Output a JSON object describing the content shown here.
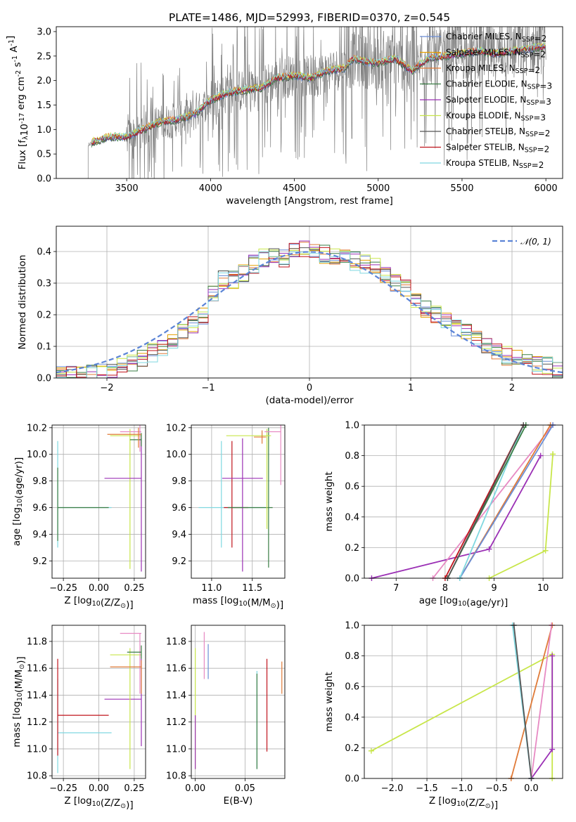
{
  "figure": {
    "title": "PLATE=1486, MJD=52993, FIBERID=0370, z=0.545"
  },
  "chart_data": [
    {
      "id": "spectrum",
      "type": "line",
      "xlabel": "wavelength [Angstrom, rest frame]",
      "ylabel": "Flux [f$_λ$10$^{-17}$ erg cm$^{-2}$ s$^{-1}$ A$^{-1}$]",
      "xlim": [
        3080,
        6100
      ],
      "ylim": [
        0,
        3.1
      ],
      "xticks": [
        3500,
        4000,
        4500,
        5000,
        5500,
        6000
      ],
      "yticks": [
        0.0,
        0.5,
        1.0,
        1.5,
        2.0,
        2.5,
        3.0
      ],
      "grid": false,
      "legend_position": "top-right",
      "legend": [
        {
          "label": "Chabrier MILES, N$_{SSP}$=2",
          "color": "#6b8ed6"
        },
        {
          "label": "Salpeter MILES, N$_{SSP}$=2",
          "color": "#e4a000"
        },
        {
          "label": "Kroupa MILES, N$_{SSP}$=2",
          "color": "#e07b39"
        },
        {
          "label": "Chabrier ELODIE, N$_{SSP}$=3",
          "color": "#3a7d44"
        },
        {
          "label": "Salpeter ELODIE, N$_{SSP}$=3",
          "color": "#9b30b5"
        },
        {
          "label": "Kroupa ELODIE, N$_{SSP}$=3",
          "color": "#c8e64a"
        },
        {
          "label": "Chabrier STELIB, N$_{SSP}$=2",
          "color": "#555555"
        },
        {
          "label": "Salpeter STELIB, N$_{SSP}$=2",
          "color": "#c0141c"
        },
        {
          "label": "Kroupa STELIB, N$_{SSP}$=2",
          "color": "#7fd8e0"
        }
      ],
      "data_color": "#808080",
      "data_envelope": {
        "x": [
          3270,
          3300,
          3400,
          3500,
          3600,
          3700,
          3800,
          3900,
          4000,
          4100,
          4200,
          4300,
          4400,
          4500,
          4600,
          4700,
          4800,
          4850,
          4900,
          5000,
          5100,
          5200,
          5300,
          5400,
          5500,
          5600,
          5700,
          5800,
          5900,
          6000
        ],
        "y": [
          0.65,
          0.75,
          0.85,
          0.85,
          1.0,
          1.15,
          1.2,
          1.3,
          1.6,
          1.75,
          1.8,
          1.85,
          2.05,
          2.1,
          2.05,
          2.2,
          2.25,
          2.45,
          2.4,
          2.35,
          2.45,
          2.2,
          2.45,
          2.5,
          2.55,
          2.6,
          2.55,
          2.6,
          2.65,
          2.7
        ]
      }
    },
    {
      "id": "residuals",
      "type": "step",
      "xlabel": "(data-model)/error",
      "ylabel": "Normed distribution",
      "xlim": [
        -2.5,
        2.5
      ],
      "ylim": [
        0,
        0.48
      ],
      "xticks": [
        -2,
        -1,
        0,
        1,
        2
      ],
      "yticks": [
        0.0,
        0.1,
        0.2,
        0.3,
        0.4
      ],
      "grid": true,
      "legend_position": "top-right",
      "legend": [
        {
          "label": "𝒩(0, 1)",
          "color": "#5b84d6",
          "style": "dashed"
        }
      ],
      "bin_edges_start": -2.5,
      "bin_width": 0.1,
      "envelope": [
        0.01,
        0.01,
        0.015,
        0.02,
        0.02,
        0.03,
        0.04,
        0.05,
        0.06,
        0.08,
        0.1,
        0.12,
        0.14,
        0.17,
        0.2,
        0.27,
        0.31,
        0.31,
        0.33,
        0.36,
        0.38,
        0.39,
        0.38,
        0.4,
        0.41,
        0.4,
        0.39,
        0.38,
        0.38,
        0.37,
        0.36,
        0.35,
        0.33,
        0.3,
        0.28,
        0.25,
        0.22,
        0.2,
        0.18,
        0.16,
        0.14,
        0.12,
        0.1,
        0.08,
        0.07,
        0.06,
        0.05,
        0.04,
        0.04,
        0.03
      ]
    },
    {
      "id": "age_vs_Z",
      "type": "errorbar",
      "xlabel": "Z [log$_{10}$(Z/Z$_⊙$)]",
      "ylabel": "age  [log$_{10}$(age/yr)]",
      "xlim": [
        -0.33,
        0.33
      ],
      "ylim": [
        9.07,
        10.22
      ],
      "xticks": [
        -0.25,
        0.0,
        0.25
      ],
      "yticks": [
        9.2,
        9.4,
        9.6,
        9.8,
        10.0,
        10.2
      ],
      "grid": true,
      "points": [
        {
          "x": -0.29,
          "y": 9.6,
          "xerr": [
            0.0,
            0.38
          ],
          "yerr": [
            0.3,
            0.5
          ],
          "color": "#7fd8e0"
        },
        {
          "x": -0.29,
          "y": 9.6,
          "xerr": [
            0.0,
            0.36
          ],
          "yerr": [
            0.25,
            0.3
          ],
          "color": "#3a7d44"
        },
        {
          "x": 0.22,
          "y": 10.14,
          "xerr": [
            0.14,
            0.08
          ],
          "yerr": [
            1.0,
            0.05
          ],
          "color": "#c8e64a"
        },
        {
          "x": 0.3,
          "y": 9.82,
          "xerr": [
            0.26,
            0.0
          ],
          "yerr": [
            0.7,
            0.3
          ],
          "color": "#9b30b5"
        },
        {
          "x": 0.29,
          "y": 10.17,
          "xerr": [
            0.14,
            0.01
          ],
          "yerr": [
            0.15,
            0.05
          ],
          "color": "#e78ac3"
        },
        {
          "x": 0.3,
          "y": 10.11,
          "xerr": [
            0.08,
            0.0
          ],
          "yerr": [
            0.05,
            0.05
          ],
          "color": "#3a7d44"
        },
        {
          "x": 0.28,
          "y": 10.15,
          "xerr": [
            0.22,
            0.02
          ],
          "yerr": [
            0.1,
            0.05
          ],
          "color": "#e07b39"
        }
      ]
    },
    {
      "id": "age_vs_mass",
      "type": "errorbar",
      "xlabel": "mass [log$_{10}$(M/M$_⊙$)]",
      "ylabel": "",
      "xlim": [
        10.75,
        11.9
      ],
      "ylim": [
        9.07,
        10.22
      ],
      "xticks": [
        11.0,
        11.5
      ],
      "yticks": [
        9.2,
        9.4,
        9.6,
        9.8,
        10.0,
        10.2
      ],
      "grid": true,
      "points": [
        {
          "x": 11.12,
          "y": 9.6,
          "xerr": [
            0.28,
            0.55
          ],
          "yerr": [
            0.3,
            0.5
          ],
          "color": "#7fd8e0"
        },
        {
          "x": 11.25,
          "y": 9.6,
          "xerr": [
            0.1,
            0.2
          ],
          "yerr": [
            0.3,
            0.5
          ],
          "color": "#c0141c"
        },
        {
          "x": 11.38,
          "y": 9.82,
          "xerr": [
            0.25,
            0.25
          ],
          "yerr": [
            0.7,
            0.3
          ],
          "color": "#9b30b5"
        },
        {
          "x": 11.7,
          "y": 9.6,
          "xerr": [
            0.5,
            0.05
          ],
          "yerr": [
            0.45,
            0.6
          ],
          "color": "#3a7d44"
        },
        {
          "x": 11.68,
          "y": 10.14,
          "xerr": [
            0.5,
            0.05
          ],
          "yerr": [
            0.7,
            0.05
          ],
          "color": "#c8e64a"
        },
        {
          "x": 11.85,
          "y": 10.17,
          "xerr": [
            0.2,
            0.0
          ],
          "yerr": [
            0.4,
            0.05
          ],
          "color": "#e78ac3"
        },
        {
          "x": 11.62,
          "y": 10.13,
          "xerr": [
            0.1,
            0.05
          ],
          "yerr": [
            0.05,
            0.05
          ],
          "color": "#e07b39"
        }
      ]
    },
    {
      "id": "weight_vs_age",
      "type": "line",
      "xlabel": "age  [log$_{10}$(age/yr)]",
      "ylabel": "mass weight",
      "xlim": [
        6.35,
        10.4
      ],
      "ylim": [
        0,
        1.0
      ],
      "xticks": [
        7,
        8,
        9,
        10
      ],
      "yticks": [
        0.0,
        0.2,
        0.4,
        0.6,
        0.8,
        1.0
      ],
      "grid": true,
      "series": [
        {
          "color": "#9b30b5",
          "x": [
            6.5,
            8.9,
            9.95
          ],
          "y": [
            0.0,
            0.19,
            0.8
          ]
        },
        {
          "color": "#c8e64a",
          "x": [
            8.9,
            10.05,
            10.2,
            10.2
          ],
          "y": [
            0.0,
            0.18,
            0.81,
            0.81
          ]
        },
        {
          "color": "#e78ac3",
          "x": [
            7.75,
            10.2
          ],
          "y": [
            0.0,
            1.0
          ]
        },
        {
          "color": "#e07b39",
          "x": [
            8.3,
            10.15
          ],
          "y": [
            0.0,
            1.0
          ]
        },
        {
          "color": "#6b8ed6",
          "x": [
            8.3,
            10.2
          ],
          "y": [
            0.0,
            1.0
          ]
        },
        {
          "color": "#7fd8e0",
          "x": [
            8.3,
            9.6
          ],
          "y": [
            0.0,
            1.0
          ]
        },
        {
          "color": "#3a7d44",
          "x": [
            8.05,
            9.65
          ],
          "y": [
            0.0,
            1.0
          ]
        },
        {
          "color": "#c0141c",
          "x": [
            8.0,
            9.6
          ],
          "y": [
            0.0,
            1.0
          ]
        },
        {
          "color": "#555555",
          "x": [
            8.05,
            9.6
          ],
          "y": [
            0.0,
            1.0
          ]
        }
      ]
    },
    {
      "id": "mass_vs_Z",
      "type": "errorbar",
      "xlabel": "Z [log$_{10}$(Z/Z$_⊙$)]",
      "ylabel": "mass [log$_{10}$(M/M$_⊙$)]",
      "xlim": [
        -0.33,
        0.33
      ],
      "ylim": [
        10.78,
        11.92
      ],
      "xticks": [
        -0.25,
        0.0,
        0.25
      ],
      "yticks": [
        10.8,
        11.0,
        11.2,
        11.4,
        11.6,
        11.8
      ],
      "grid": true,
      "points": [
        {
          "x": -0.29,
          "y": 11.12,
          "xerr": [
            0.0,
            0.38
          ],
          "yerr": [
            0.3,
            0.4
          ],
          "color": "#7fd8e0"
        },
        {
          "x": -0.29,
          "y": 11.25,
          "xerr": [
            0.0,
            0.36
          ],
          "yerr": [
            0.3,
            0.42
          ],
          "color": "#c0141c"
        },
        {
          "x": 0.3,
          "y": 11.37,
          "xerr": [
            0.26,
            0.0
          ],
          "yerr": [
            0.35,
            0.3
          ],
          "color": "#9b30b5"
        },
        {
          "x": 0.22,
          "y": 11.7,
          "xerr": [
            0.14,
            0.08
          ],
          "yerr": [
            0.85,
            0.05
          ],
          "color": "#c8e64a"
        },
        {
          "x": 0.29,
          "y": 11.86,
          "xerr": [
            0.14,
            0.01
          ],
          "yerr": [
            0.45,
            0.0
          ],
          "color": "#e78ac3"
        },
        {
          "x": 0.3,
          "y": 11.61,
          "xerr": [
            0.22,
            0.0
          ],
          "yerr": [
            0.2,
            0.05
          ],
          "color": "#e07b39"
        },
        {
          "x": 0.3,
          "y": 11.72,
          "xerr": [
            0.1,
            0.0
          ],
          "yerr": [
            0.05,
            0.05
          ],
          "color": "#3a7d44"
        }
      ]
    },
    {
      "id": "mass_vs_EBV",
      "type": "errorbar",
      "xlabel": "E(B-V)",
      "ylabel": "",
      "xlim": [
        -0.004,
        0.09
      ],
      "ylim": [
        10.78,
        11.92
      ],
      "xticks": [
        0.0,
        0.05
      ],
      "yticks": [
        10.8,
        11.0,
        11.2,
        11.4,
        11.6,
        11.8
      ],
      "grid": true,
      "points": [
        {
          "x": 0.0,
          "y": 11.3,
          "yerr": [
            0.45,
            0.45
          ],
          "color": "#c8e64a"
        },
        {
          "x": 0.0,
          "y": 11.05,
          "yerr": [
            0.2,
            0.2
          ],
          "color": "#9b30b5"
        },
        {
          "x": 0.009,
          "y": 11.7,
          "yerr": [
            0.18,
            0.17
          ],
          "color": "#e78ac3"
        },
        {
          "x": 0.013,
          "y": 11.65,
          "yerr": [
            0.13,
            0.13
          ],
          "color": "#6b8ed6"
        },
        {
          "x": 0.062,
          "y": 11.2,
          "yerr": [
            0.35,
            0.38
          ],
          "color": "#7fd8e0"
        },
        {
          "x": 0.062,
          "y": 11.2,
          "yerr": [
            0.35,
            0.36
          ],
          "color": "#3a7d44"
        },
        {
          "x": 0.072,
          "y": 11.3,
          "yerr": [
            0.32,
            0.37
          ],
          "color": "#c0141c"
        },
        {
          "x": 0.087,
          "y": 11.53,
          "yerr": [
            0.12,
            0.12
          ],
          "color": "#e07b39"
        }
      ]
    },
    {
      "id": "weight_vs_Z",
      "type": "line",
      "xlabel": "Z [log$_{10}$(Z/Z$_⊙$)]",
      "ylabel": "mass weight",
      "xlim": [
        -2.4,
        0.45
      ],
      "ylim": [
        0,
        1.0
      ],
      "xticks": [
        -2.0,
        -1.5,
        -1.0,
        -0.5,
        0.0
      ],
      "yticks": [
        0.0,
        0.2,
        0.4,
        0.6,
        0.8,
        1.0
      ],
      "grid": true,
      "series": [
        {
          "color": "#c8e64a",
          "x": [
            -2.3,
            0.3,
            0.3
          ],
          "y": [
            0.18,
            0.81,
            0.0
          ]
        },
        {
          "color": "#e07b39",
          "x": [
            -0.29,
            0.3
          ],
          "y": [
            0.0,
            1.0
          ]
        },
        {
          "color": "#9b30b5",
          "x": [
            0.0,
            0.3,
            0.3
          ],
          "y": [
            0.0,
            0.19,
            0.8
          ]
        },
        {
          "color": "#e78ac3",
          "x": [
            0.0,
            0.29
          ],
          "y": [
            0.0,
            1.0
          ]
        },
        {
          "color": "#7fd8e0",
          "x": [
            -0.27,
            0.0
          ],
          "y": [
            1.0,
            0.0
          ]
        },
        {
          "color": "#555555",
          "x": [
            -0.25,
            0.0
          ],
          "y": [
            1.0,
            0.0
          ]
        }
      ]
    }
  ]
}
